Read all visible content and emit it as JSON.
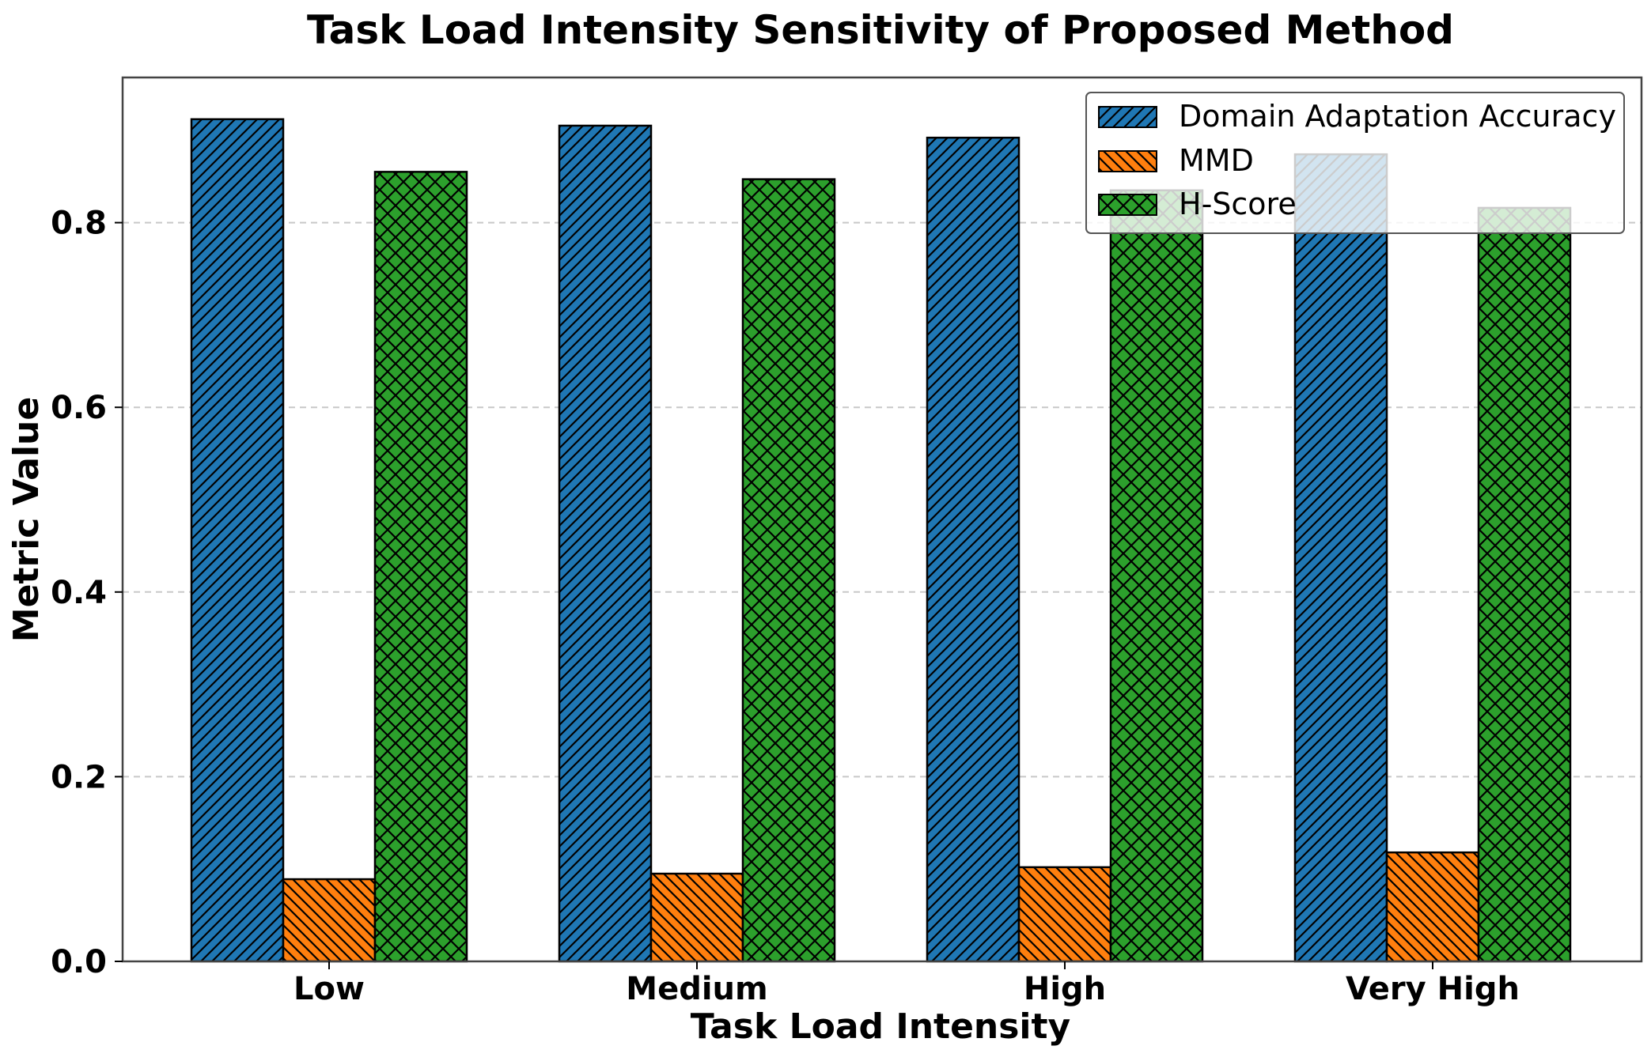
{
  "chart_data": {
    "type": "bar",
    "title": "Task Load Intensity Sensitivity of Proposed Method",
    "xlabel": "Task Load Intensity",
    "ylabel": "Metric Value",
    "categories": [
      "Low",
      "Medium",
      "High",
      "Very High"
    ],
    "series": [
      {
        "name": "Domain Adaptation Accuracy",
        "values": [
          0.912,
          0.905,
          0.892,
          0.874
        ],
        "color": "#1f77b4",
        "hatch": "diagonal"
      },
      {
        "name": "MMD",
        "values": [
          0.089,
          0.095,
          0.102,
          0.118
        ],
        "color": "#ff7f0e",
        "hatch": "backdiagonal"
      },
      {
        "name": "H-Score",
        "values": [
          0.855,
          0.847,
          0.835,
          0.816
        ],
        "color": "#2ca02c",
        "hatch": "cross"
      }
    ],
    "ylim": [
      0,
      0.9565
    ],
    "yticks": [
      "0.0",
      "0.2",
      "0.4",
      "0.6",
      "0.8"
    ],
    "grid": "y-dashed",
    "legend_position": "top-right"
  }
}
